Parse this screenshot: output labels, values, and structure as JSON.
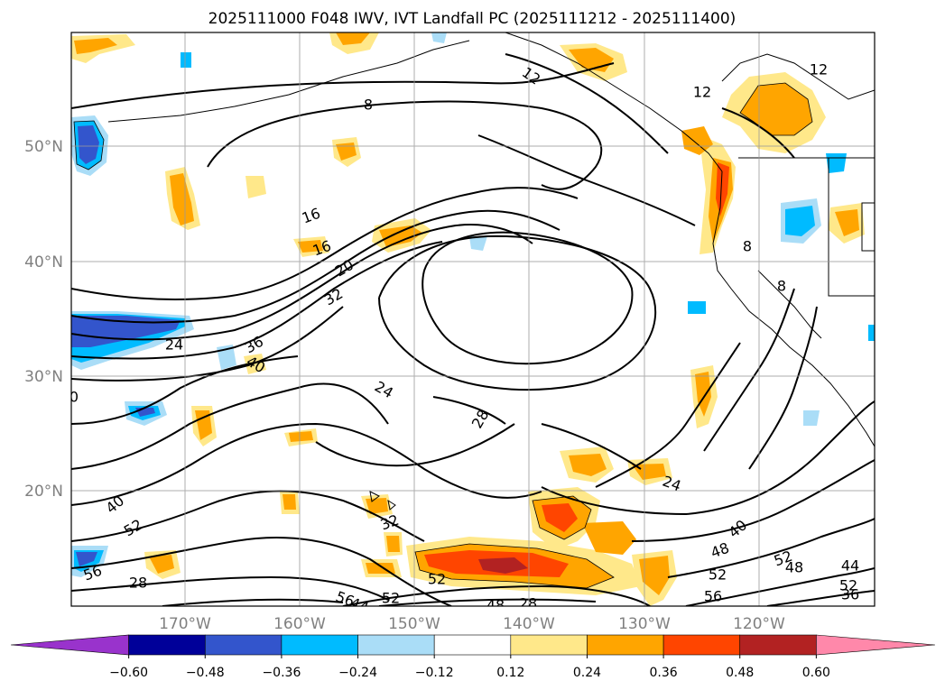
{
  "title": "2025111000 F048 IWV, IVT Landfall PC (2025111212 - 2025111400)",
  "latitude_labels": [
    "50°N",
    "40°N",
    "30°N",
    "20°N"
  ],
  "longitude_labels": [
    "170°W",
    "160°W",
    "150°W",
    "140°W",
    "130°W",
    "120°W"
  ],
  "colorbar": {
    "tick_labels": [
      "−0.60",
      "−0.48",
      "−0.36",
      "−0.24",
      "−0.12",
      "0.12",
      "0.24",
      "0.36",
      "0.48",
      "0.60"
    ],
    "colors": [
      "#9933cc",
      "#000099",
      "#3355cc",
      "#00bbff",
      "#aaddf7",
      "#ffffff",
      "#ffe88a",
      "#ffa500",
      "#ff4500",
      "#b22222",
      "#ff88aa"
    ]
  },
  "contour_labels": [
    "8",
    "12",
    "12",
    "12",
    "8",
    "8",
    "16",
    "16",
    "20",
    "32",
    "24",
    "36",
    "40",
    "24",
    "28",
    "24",
    "40",
    "52",
    "56",
    "28",
    "32",
    "52",
    "56",
    "44",
    "52",
    "48",
    "28",
    "40",
    "48",
    "52",
    "56",
    "52",
    "48",
    "44",
    "52",
    "36",
    "0"
  ],
  "colors": {
    "contour": "#000000",
    "grid": "#999999",
    "coastline": "#000000"
  }
}
